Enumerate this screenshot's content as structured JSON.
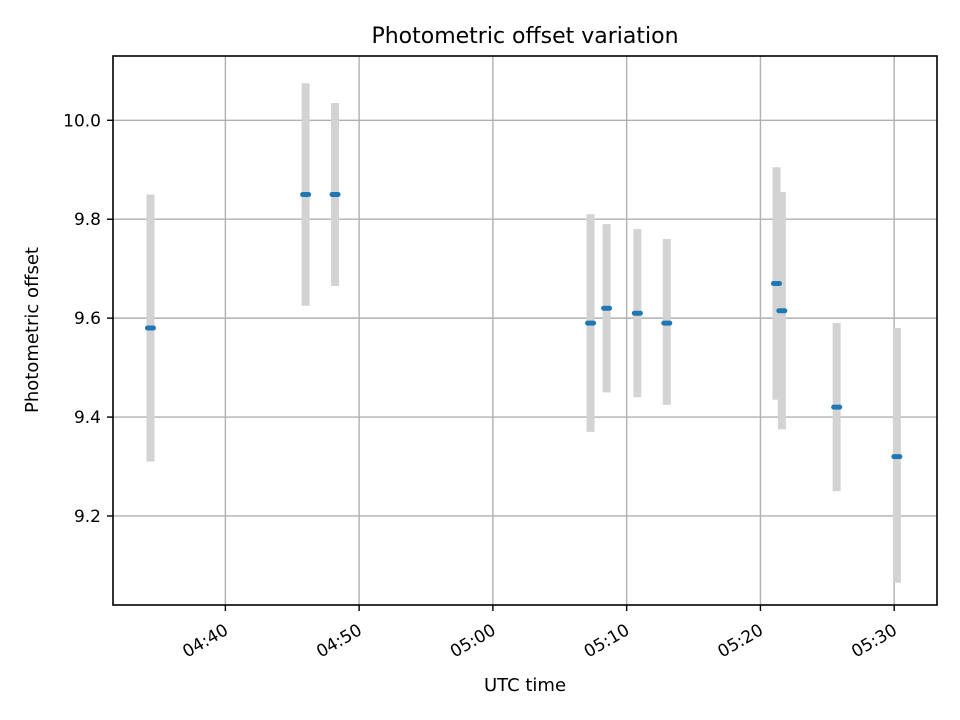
{
  "chart_data": {
    "type": "scatter",
    "title": "Photometric offset variation",
    "xlabel": "UTC time",
    "ylabel": "Photometric offset",
    "x_unit": "UTC time of day",
    "xlim": [
      "04:31:36",
      "05:33:12"
    ],
    "ylim": [
      9.02,
      10.13
    ],
    "grid": true,
    "x_ticks": [
      "04:40",
      "04:50",
      "05:00",
      "05:10",
      "05:20",
      "05:30"
    ],
    "y_ticks": [
      9.2,
      9.4,
      9.6,
      9.8,
      10.0
    ],
    "colors": {
      "points": "#1f77b4",
      "error_bars": "#d3d3d3"
    },
    "series": [
      {
        "points": [
          {
            "x": "04:34:24",
            "y": 9.58,
            "err_low": 9.31,
            "err_high": 9.85
          },
          {
            "x": "04:46:00",
            "y": 9.85,
            "err_low": 9.625,
            "err_high": 10.075
          },
          {
            "x": "04:48:12",
            "y": 9.85,
            "err_low": 9.665,
            "err_high": 10.035
          },
          {
            "x": "05:07:18",
            "y": 9.59,
            "err_low": 9.37,
            "err_high": 9.81
          },
          {
            "x": "05:08:30",
            "y": 9.62,
            "err_low": 9.45,
            "err_high": 9.79
          },
          {
            "x": "05:10:48",
            "y": 9.61,
            "err_low": 9.44,
            "err_high": 9.78
          },
          {
            "x": "05:13:00",
            "y": 9.59,
            "err_low": 9.425,
            "err_high": 9.76
          },
          {
            "x": "05:21:12",
            "y": 9.67,
            "err_low": 9.435,
            "err_high": 9.905
          },
          {
            "x": "05:21:36",
            "y": 9.615,
            "err_low": 9.375,
            "err_high": 9.855
          },
          {
            "x": "05:25:42",
            "y": 9.42,
            "err_low": 9.25,
            "err_high": 9.59
          },
          {
            "x": "05:30:12",
            "y": 9.32,
            "err_low": 9.065,
            "err_high": 9.58
          }
        ]
      }
    ]
  }
}
